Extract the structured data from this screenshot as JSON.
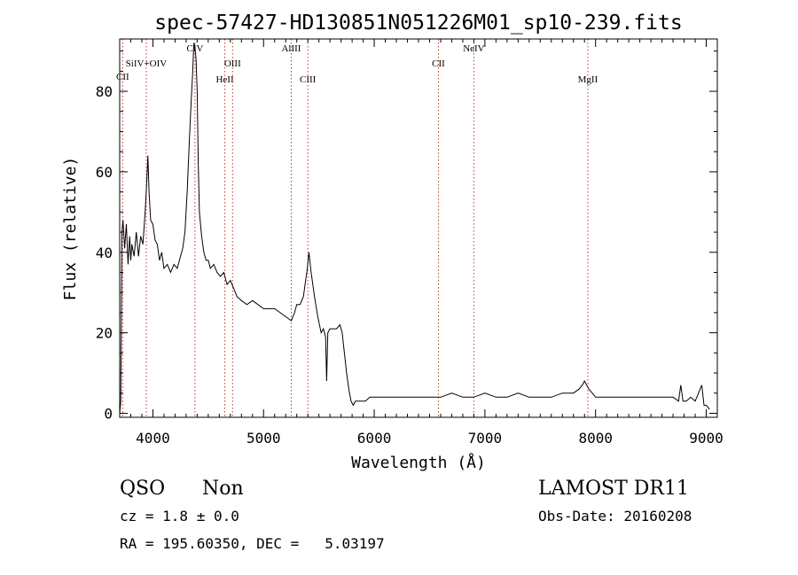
{
  "title": "spec-57427-HD130851N051226M01_sp10-239.fits",
  "footer": {
    "class_label": "QSO",
    "subclass_label": "Non",
    "cz_label": "cz = 1.8 ± 0.0",
    "coords_label": "RA = 195.60350, DEC =   5.03197",
    "survey_label": "LAMOST DR11",
    "obs_date_label": "Obs-Date: 20160208"
  },
  "colors": {
    "axis": "#000000",
    "spectrum": "#000000",
    "line_marker": "#c0392b"
  },
  "chart_data": {
    "type": "line",
    "title": "spec-57427-HD130851N051226M01_sp10-239.fits",
    "xlabel": "Wavelength (Å)",
    "ylabel": "Flux (relative)",
    "xlim": [
      3700,
      9100
    ],
    "ylim": [
      -1,
      93
    ],
    "xticks": [
      4000,
      5000,
      6000,
      7000,
      8000,
      9000
    ],
    "yticks": [
      0,
      20,
      40,
      60,
      80
    ],
    "grid": false,
    "series": [
      {
        "x": [
          3700,
          3710,
          3720,
          3730,
          3745,
          3760,
          3775,
          3790,
          3800,
          3810,
          3830,
          3850,
          3870,
          3890,
          3910,
          3930,
          3945,
          3955,
          3965,
          3980,
          4000,
          4020,
          4040,
          4060,
          4080,
          4100,
          4130,
          4160,
          4190,
          4220,
          4250,
          4270,
          4290,
          4310,
          4330,
          4345,
          4360,
          4370,
          4380,
          4390,
          4400,
          4410,
          4420,
          4440,
          4460,
          4480,
          4500,
          4520,
          4550,
          4580,
          4610,
          4640,
          4670,
          4700,
          4730,
          4760,
          4800,
          4850,
          4900,
          4950,
          5000,
          5050,
          5100,
          5150,
          5200,
          5250,
          5280,
          5300,
          5330,
          5360,
          5380,
          5395,
          5410,
          5430,
          5460,
          5490,
          5520,
          5540,
          5560,
          5570,
          5580,
          5600,
          5630,
          5660,
          5690,
          5710,
          5730,
          5750,
          5770,
          5790,
          5810,
          5830,
          5850,
          5880,
          5920,
          5960,
          6000,
          6100,
          6200,
          6300,
          6400,
          6500,
          6600,
          6700,
          6800,
          6900,
          7000,
          7100,
          7200,
          7300,
          7400,
          7500,
          7600,
          7700,
          7800,
          7850,
          7880,
          7900,
          7920,
          7940,
          7970,
          8000,
          8100,
          8200,
          8300,
          8400,
          8500,
          8600,
          8700,
          8750,
          8770,
          8790,
          8820,
          8860,
          8900,
          8930,
          8960,
          8980,
          9000,
          9030
        ],
        "y": [
          0,
          3,
          45,
          48,
          41,
          47,
          37,
          44,
          38,
          42,
          39,
          45,
          39,
          44,
          42,
          50,
          58,
          64,
          55,
          48,
          47,
          43,
          42,
          38,
          40,
          36,
          37,
          35,
          37,
          36,
          39,
          41,
          45,
          55,
          68,
          77,
          85,
          92,
          91,
          88,
          80,
          62,
          50,
          44,
          40,
          38,
          38,
          36,
          37,
          35,
          34,
          35,
          32,
          33,
          31,
          29,
          28,
          27,
          28,
          27,
          26,
          26,
          26,
          25,
          24,
          23,
          25,
          27,
          27,
          29,
          33,
          36,
          40,
          35,
          29,
          24,
          20,
          21,
          19,
          8,
          20,
          21,
          21,
          21,
          22,
          20,
          15,
          10,
          6,
          3,
          2,
          3,
          3,
          3,
          3,
          4,
          4,
          4,
          4,
          4,
          4,
          4,
          4,
          5,
          4,
          4,
          5,
          4,
          4,
          5,
          4,
          4,
          4,
          5,
          5,
          6,
          7,
          8,
          7,
          6,
          5,
          4,
          4,
          4,
          4,
          4,
          4,
          4,
          4,
          3,
          7,
          3,
          3,
          4,
          3,
          5,
          7,
          2,
          2,
          1
        ]
      }
    ],
    "lines": [
      {
        "name": "CII",
        "wave": 3727
      },
      {
        "name": "SiIV+OIV",
        "wave": 3940
      },
      {
        "name": "CIV",
        "wave": 4380
      },
      {
        "name": "HeII",
        "wave": 4650
      },
      {
        "name": "OIII",
        "wave": 4720
      },
      {
        "name": "AlIII",
        "wave": 5250
      },
      {
        "name": "CIII",
        "wave": 5400
      },
      {
        "name": "CII",
        "wave": 6580
      },
      {
        "name": "NeIV",
        "wave": 6900
      },
      {
        "name": "MgII",
        "wave": 7930
      }
    ]
  }
}
